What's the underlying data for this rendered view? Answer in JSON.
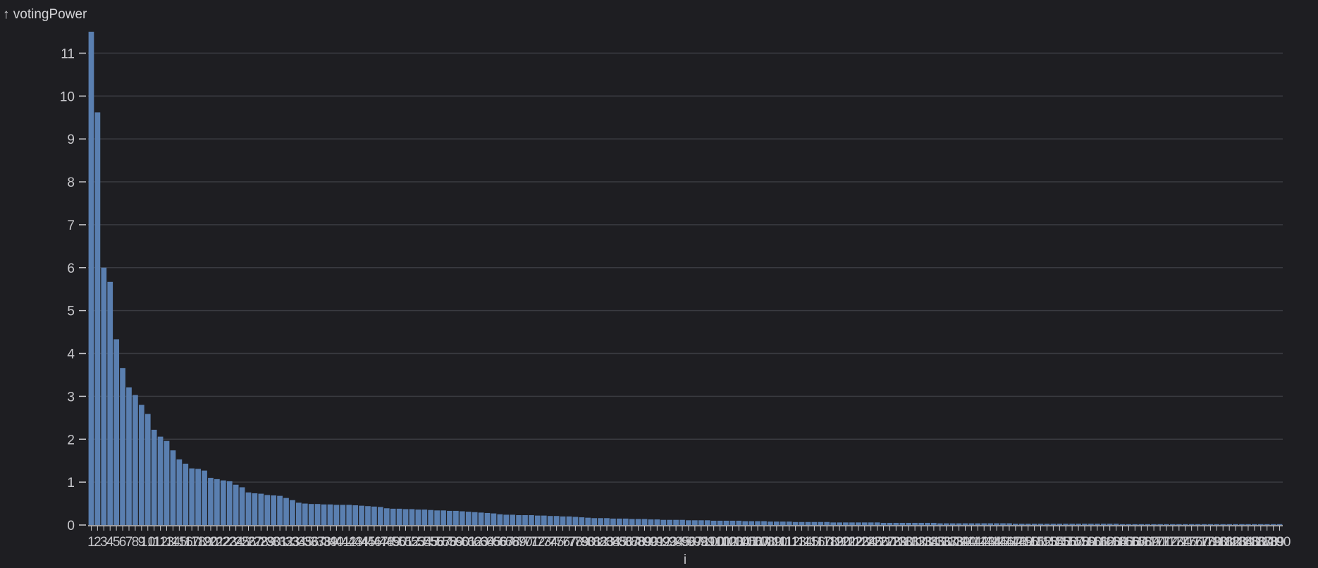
{
  "chart_data": {
    "type": "bar",
    "ylabel": "↑ votingPower",
    "xlabel": "i",
    "ylim": [
      0,
      11.5
    ],
    "yticks": [
      0,
      1,
      2,
      3,
      4,
      5,
      6,
      7,
      8,
      9,
      10,
      11
    ],
    "grid": true,
    "colors": {
      "bar": "#5a7fb0",
      "background": "#1e1e22",
      "grid": "#3a3b41",
      "axis": "#c8c8cc"
    },
    "count": 190,
    "x_start": 1,
    "values": [
      11.5,
      9.62,
      6.0,
      5.67,
      4.33,
      3.66,
      3.21,
      3.03,
      2.8,
      2.59,
      2.22,
      2.06,
      1.96,
      1.74,
      1.53,
      1.43,
      1.32,
      1.31,
      1.27,
      1.1,
      1.07,
      1.04,
      1.02,
      0.94,
      0.88,
      0.76,
      0.74,
      0.73,
      0.7,
      0.69,
      0.68,
      0.63,
      0.58,
      0.52,
      0.5,
      0.49,
      0.49,
      0.48,
      0.48,
      0.47,
      0.47,
      0.47,
      0.46,
      0.45,
      0.44,
      0.43,
      0.42,
      0.39,
      0.38,
      0.38,
      0.37,
      0.37,
      0.36,
      0.36,
      0.35,
      0.34,
      0.34,
      0.33,
      0.33,
      0.32,
      0.31,
      0.3,
      0.29,
      0.28,
      0.27,
      0.25,
      0.24,
      0.24,
      0.23,
      0.23,
      0.23,
      0.22,
      0.22,
      0.21,
      0.21,
      0.2,
      0.2,
      0.19,
      0.18,
      0.17,
      0.16,
      0.16,
      0.16,
      0.15,
      0.15,
      0.15,
      0.14,
      0.14,
      0.14,
      0.13,
      0.13,
      0.12,
      0.12,
      0.12,
      0.12,
      0.11,
      0.11,
      0.11,
      0.11,
      0.1,
      0.1,
      0.1,
      0.1,
      0.1,
      0.09,
      0.09,
      0.09,
      0.09,
      0.08,
      0.08,
      0.08,
      0.08,
      0.07,
      0.07,
      0.07,
      0.07,
      0.07,
      0.07,
      0.06,
      0.06,
      0.06,
      0.06,
      0.06,
      0.06,
      0.06,
      0.06,
      0.05,
      0.05,
      0.05,
      0.05,
      0.05,
      0.05,
      0.05,
      0.05,
      0.05,
      0.04,
      0.04,
      0.04,
      0.04,
      0.04,
      0.04,
      0.04,
      0.04,
      0.04,
      0.04,
      0.04,
      0.04,
      0.03,
      0.03,
      0.03,
      0.03,
      0.03,
      0.03,
      0.03,
      0.03,
      0.03,
      0.03,
      0.03,
      0.03,
      0.03,
      0.03,
      0.03,
      0.03,
      0.03,
      0.02,
      0.02,
      0.02,
      0.02,
      0.02,
      0.02,
      0.02,
      0.02,
      0.02,
      0.02,
      0.02,
      0.02,
      0.02,
      0.02,
      0.02,
      0.02,
      0.02,
      0.02,
      0.02,
      0.02,
      0.02,
      0.02,
      0.02,
      0.02,
      0.02,
      0.02
    ]
  }
}
